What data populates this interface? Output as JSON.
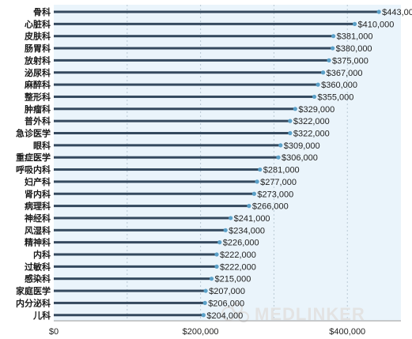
{
  "chart_data": {
    "type": "bar",
    "orientation": "horizontal",
    "categories": [
      "骨科",
      "心脏科",
      "皮肤科",
      "肠胃科",
      "放射科",
      "泌尿科",
      "麻醉科",
      "整形科",
      "肿瘤科",
      "普外科",
      "急诊医学",
      "眼科",
      "重症医学",
      "呼吸内科",
      "妇产科",
      "肾内科",
      "病理科",
      "神经科",
      "风湿科",
      "精神科",
      "内科",
      "过敏科",
      "感染科",
      "家庭医学",
      "内分泌科",
      "儿科"
    ],
    "values": [
      443000,
      410000,
      381000,
      380000,
      375000,
      367000,
      360000,
      355000,
      329000,
      322000,
      322000,
      309000,
      306000,
      281000,
      277000,
      273000,
      266000,
      241000,
      234000,
      226000,
      222000,
      222000,
      215000,
      207000,
      206000,
      204000
    ],
    "value_labels": [
      "$443,000",
      "$410,000",
      "$381,000",
      "$380,000",
      "$375,000",
      "$367,000",
      "$360,000",
      "$355,000",
      "$329,000",
      "$322,000",
      "$322,000",
      "$309,000",
      "$306,000",
      "$281,000",
      "$277,000",
      "$273,000",
      "$266,000",
      "$241,000",
      "$234,000",
      "$226,000",
      "$222,000",
      "$222,000",
      "$215,000",
      "$207,000",
      "$206,000",
      "$204,000"
    ],
    "xlim": [
      0,
      473000
    ],
    "x_ticks": [
      0,
      200000,
      400000
    ],
    "x_tick_labels": [
      "$0",
      "$200,000",
      "$400,000"
    ],
    "grid": "vertical-dashed",
    "colors": {
      "bar": "#34495e",
      "bar_end": "#5aa0c8",
      "background_band": "#eaf4fb",
      "grid": "#b9c9d4"
    }
  },
  "watermark": {
    "text": "MEDLINKER",
    "icon": "medlinker-logo-icon"
  }
}
